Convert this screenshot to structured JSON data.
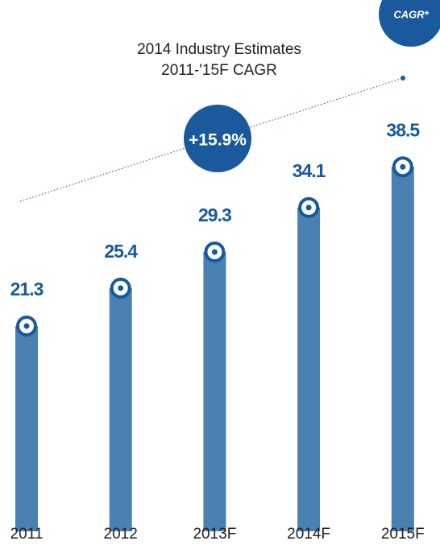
{
  "chart_data": {
    "type": "bar",
    "title": "2014 Industry Estimates",
    "subtitle": "2011-'15F CAGR",
    "annotations": [
      "+15.9%",
      "CAGR*"
    ],
    "categories": [
      "2011",
      "2012",
      "2013F",
      "2014F",
      "2015F"
    ],
    "values": [
      21.3,
      25.4,
      29.3,
      34.1,
      38.5
    ],
    "color": "#4a80b2"
  }
}
